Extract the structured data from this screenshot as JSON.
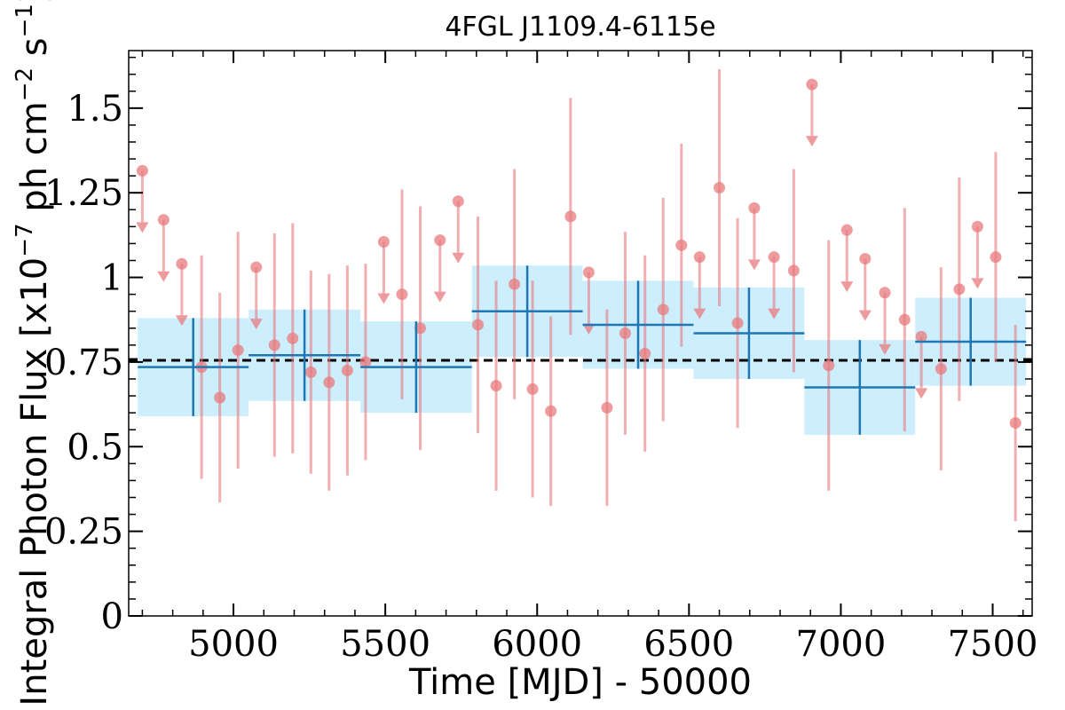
{
  "chart_data": {
    "type": "scatter",
    "title": "4FGL J1109.4-6115e",
    "xlabel": "Time [MJD] - 50000",
    "ylabel_pre": "Integral Photon Flux [x10",
    "ylabel_exp1": "−7",
    "ylabel_mid": " ph cm",
    "ylabel_exp2": "−2",
    "ylabel_mid2": " s",
    "ylabel_exp3": "−1",
    "ylabel_post": "]",
    "xlim": [
      4655,
      7630
    ],
    "ylim": [
      0,
      1.67
    ],
    "x_ticks": [
      5000,
      5500,
      6000,
      6500,
      7000,
      7500
    ],
    "x_tick_labels": [
      "5000",
      "5500",
      "6000",
      "6500",
      "7000",
      "7500"
    ],
    "y_ticks": [
      0,
      0.25,
      0.5,
      0.75,
      1.0,
      1.25,
      1.5
    ],
    "y_tick_labels": [
      "0",
      "0.25",
      "0.5",
      "0.75",
      "1",
      "1.25",
      "1.5"
    ],
    "mean_flux": 0.755,
    "colors": {
      "short_bins": "#e8797e",
      "long_bins": "#1f77b4",
      "long_band": "#cdeefc",
      "mean_line": "#000000"
    },
    "series": [
      {
        "points": [
          {
            "x": 4895,
            "y": 0.735,
            "err": 0.33
          },
          {
            "x": 4955,
            "y": 0.645,
            "err": 0.31
          },
          {
            "x": 5015,
            "y": 0.785,
            "err": 0.35
          },
          {
            "x": 5135,
            "y": 0.8,
            "err": 0.33
          },
          {
            "x": 5195,
            "y": 0.82,
            "err": 0.34
          },
          {
            "x": 5255,
            "y": 0.72,
            "err": 0.3
          },
          {
            "x": 5315,
            "y": 0.69,
            "err": 0.32
          },
          {
            "x": 5375,
            "y": 0.725,
            "err": 0.31
          },
          {
            "x": 5435,
            "y": 0.75,
            "err": 0.29
          },
          {
            "x": 5555,
            "y": 0.95,
            "err": 0.31
          },
          {
            "x": 5615,
            "y": 0.85,
            "err": 0.36
          },
          {
            "x": 5805,
            "y": 0.86,
            "err": 0.32
          },
          {
            "x": 5865,
            "y": 0.68,
            "err": 0.31
          },
          {
            "x": 5925,
            "y": 0.98,
            "err": 0.34
          },
          {
            "x": 5985,
            "y": 0.67,
            "err": 0.32
          },
          {
            "x": 6045,
            "y": 0.605,
            "err": 0.28
          },
          {
            "x": 6110,
            "y": 1.18,
            "err": 0.35
          },
          {
            "x": 6230,
            "y": 0.615,
            "err": 0.29
          },
          {
            "x": 6290,
            "y": 0.835,
            "err": 0.3
          },
          {
            "x": 6355,
            "y": 0.775,
            "err": 0.29
          },
          {
            "x": 6415,
            "y": 0.905,
            "err": 0.33
          },
          {
            "x": 6475,
            "y": 1.095,
            "err": 0.3
          },
          {
            "x": 6600,
            "y": 1.265,
            "err": 0.35
          },
          {
            "x": 6660,
            "y": 0.865,
            "err": 0.31
          },
          {
            "x": 6845,
            "y": 1.02,
            "err": 0.3
          },
          {
            "x": 6960,
            "y": 0.74,
            "err": 0.37
          },
          {
            "x": 7210,
            "y": 0.875,
            "err": 0.33
          },
          {
            "x": 7330,
            "y": 0.73,
            "err": 0.3
          },
          {
            "x": 7390,
            "y": 0.965,
            "err": 0.33
          },
          {
            "x": 7510,
            "y": 1.06,
            "err": 0.31
          },
          {
            "x": 7575,
            "y": 0.57,
            "err": 0.29
          }
        ],
        "upper_limits": [
          {
            "x": 4700,
            "y": 1.315
          },
          {
            "x": 4770,
            "y": 1.17
          },
          {
            "x": 4830,
            "y": 1.04
          },
          {
            "x": 5075,
            "y": 1.03
          },
          {
            "x": 5495,
            "y": 1.105
          },
          {
            "x": 5680,
            "y": 1.11
          },
          {
            "x": 5740,
            "y": 1.225
          },
          {
            "x": 6170,
            "y": 1.015
          },
          {
            "x": 6535,
            "y": 1.06
          },
          {
            "x": 6715,
            "y": 1.205
          },
          {
            "x": 6780,
            "y": 1.06
          },
          {
            "x": 6905,
            "y": 1.57
          },
          {
            "x": 7020,
            "y": 1.14
          },
          {
            "x": 7080,
            "y": 1.055
          },
          {
            "x": 7145,
            "y": 0.955
          },
          {
            "x": 7265,
            "y": 0.825
          },
          {
            "x": 7450,
            "y": 1.15
          }
        ]
      },
      {
        "bins": [
          {
            "x0": 4685,
            "x1": 5050,
            "y": 0.735,
            "err": 0.145
          },
          {
            "x0": 5050,
            "x1": 5418,
            "y": 0.77,
            "err": 0.135
          },
          {
            "x0": 5418,
            "x1": 5785,
            "y": 0.735,
            "err": 0.135
          },
          {
            "x0": 5785,
            "x1": 6150,
            "y": 0.9,
            "err": 0.135
          },
          {
            "x0": 6150,
            "x1": 6515,
            "y": 0.86,
            "err": 0.13
          },
          {
            "x0": 6515,
            "x1": 6880,
            "y": 0.835,
            "err": 0.135
          },
          {
            "x0": 6880,
            "x1": 7245,
            "y": 0.675,
            "err": 0.14
          },
          {
            "x0": 7245,
            "x1": 7610,
            "y": 0.81,
            "err": 0.13
          }
        ]
      }
    ]
  }
}
